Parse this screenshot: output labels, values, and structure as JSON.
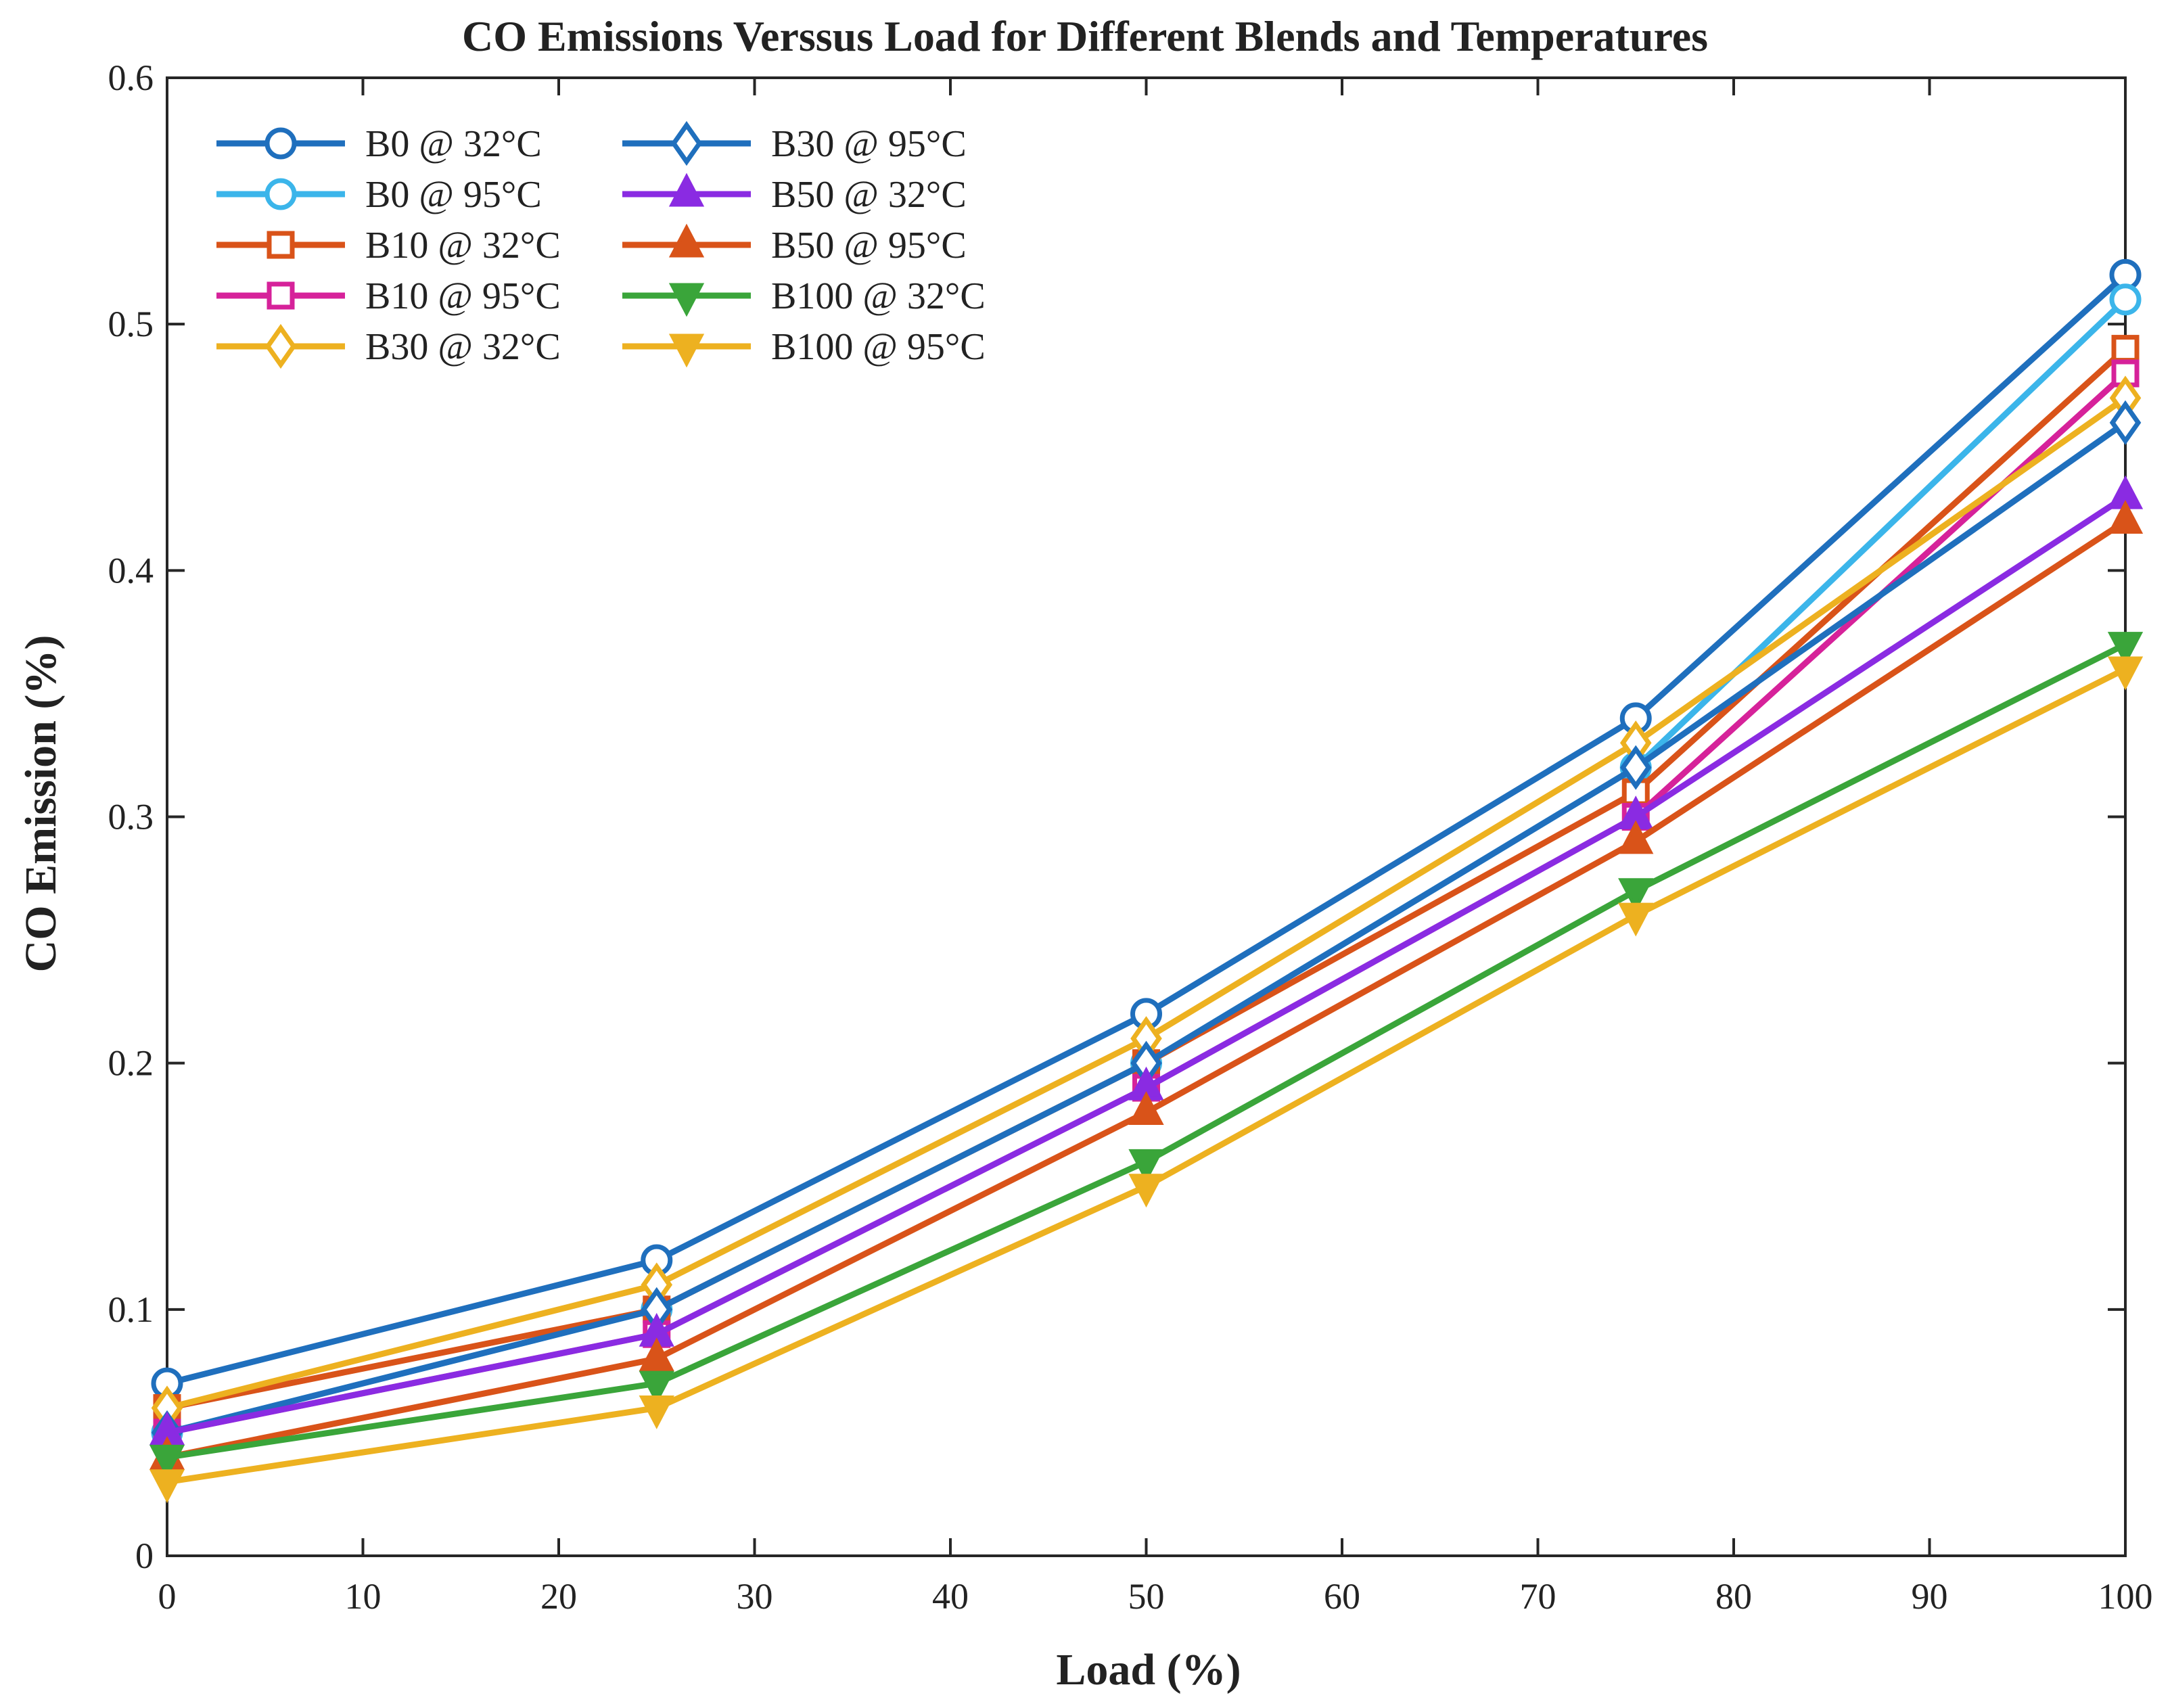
{
  "chart_data": {
    "type": "line",
    "title": "CO Emissions Verssus Load for Different Blends and Temperatures",
    "xlabel": "Load (%)",
    "ylabel": "CO Emission (%)",
    "xlim": [
      0,
      100
    ],
    "ylim": [
      0,
      0.6
    ],
    "xticks": [
      0,
      10,
      20,
      30,
      40,
      50,
      60,
      70,
      80,
      90,
      100
    ],
    "xtick_labels": [
      "0",
      "10",
      "20",
      "30",
      "40",
      "50",
      "60",
      "70",
      "80",
      "90",
      "100"
    ],
    "yticks": [
      0,
      0.1,
      0.2,
      0.3,
      0.4,
      0.5,
      0.6
    ],
    "ytick_labels": [
      "0",
      "0.1",
      "0.2",
      "0.3",
      "0.4",
      "0.5",
      "0.6"
    ],
    "grid": false,
    "legend_position": "top-left",
    "legend_columns": 2,
    "x": [
      0,
      25,
      50,
      75,
      100
    ],
    "series": [
      {
        "name": "B0 @ 32°C",
        "color": "#1f6fbd",
        "marker": "circle",
        "values": [
          0.07,
          0.12,
          0.22,
          0.34,
          0.52
        ]
      },
      {
        "name": "B0 @ 95°C",
        "color": "#3bb5ea",
        "marker": "circle",
        "values": [
          0.05,
          0.1,
          0.2,
          0.32,
          0.51
        ]
      },
      {
        "name": "B10 @ 32°C",
        "color": "#d95319",
        "marker": "square",
        "values": [
          0.06,
          0.1,
          0.2,
          0.31,
          0.49
        ]
      },
      {
        "name": "B10 @ 95°C",
        "color": "#d6229a",
        "marker": "square",
        "values": [
          0.05,
          0.09,
          0.19,
          0.3,
          0.48
        ]
      },
      {
        "name": "B30 @ 32°C",
        "color": "#edb120",
        "marker": "diamond",
        "values": [
          0.06,
          0.11,
          0.21,
          0.33,
          0.47
        ]
      },
      {
        "name": "B30 @ 95°C",
        "color": "#1f6fbd",
        "marker": "diamond",
        "values": [
          0.05,
          0.1,
          0.2,
          0.32,
          0.46
        ]
      },
      {
        "name": "B50 @ 32°C",
        "color": "#8a2be2",
        "marker": "triangle-up",
        "values": [
          0.05,
          0.09,
          0.19,
          0.3,
          0.43
        ]
      },
      {
        "name": "B50 @ 95°C",
        "color": "#d95319",
        "marker": "triangle-up",
        "values": [
          0.04,
          0.08,
          0.18,
          0.29,
          0.42
        ]
      },
      {
        "name": "B100 @ 32°C",
        "color": "#3aa53a",
        "marker": "triangle-down",
        "values": [
          0.04,
          0.07,
          0.16,
          0.27,
          0.37
        ]
      },
      {
        "name": "B100 @ 95°C",
        "color": "#edb120",
        "marker": "triangle-down",
        "values": [
          0.03,
          0.06,
          0.15,
          0.26,
          0.36
        ]
      }
    ]
  }
}
